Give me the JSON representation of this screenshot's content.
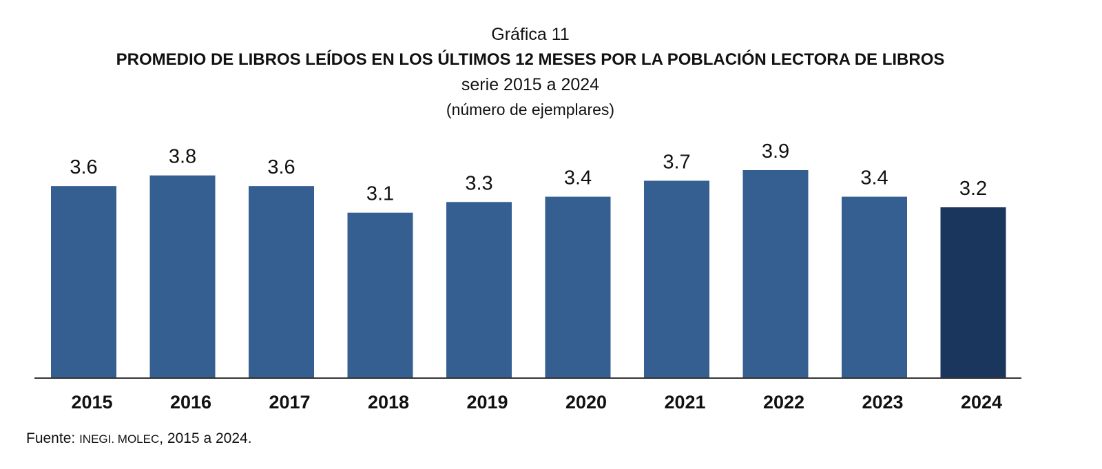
{
  "chart_label": "Gráfica 11",
  "title": "PROMEDIO DE LIBROS LEÍDOS EN LOS ÚLTIMOS 12 MESES POR LA POBLACIÓN LECTORA DE LIBROS",
  "subtitle": "serie 2015 a 2024",
  "unit_note": "(número de ejemplares)",
  "source": {
    "prefix": "Fuente: ",
    "org": "INEGI. MOLEC",
    "suffix": ", 2015 a 2024."
  },
  "colors": {
    "bar": "#365f91",
    "bar_highlight": "#1b365d",
    "axis": "#333333",
    "text": "#111111"
  },
  "chart_data": {
    "type": "bar",
    "categories": [
      "2015",
      "2016",
      "2017",
      "2018",
      "2019",
      "2020",
      "2021",
      "2022",
      "2023",
      "2024"
    ],
    "values": [
      3.6,
      3.8,
      3.6,
      3.1,
      3.3,
      3.4,
      3.7,
      3.9,
      3.4,
      3.2
    ],
    "data_labels": [
      "3.6",
      "3.8",
      "3.6",
      "3.1",
      "3.3",
      "3.4",
      "3.7",
      "3.9",
      "3.4",
      "3.2"
    ],
    "highlight_category": "2024",
    "ylim": [
      0,
      3.9
    ],
    "grid": false,
    "legend": "none",
    "xlabel": "",
    "ylabel": ""
  }
}
